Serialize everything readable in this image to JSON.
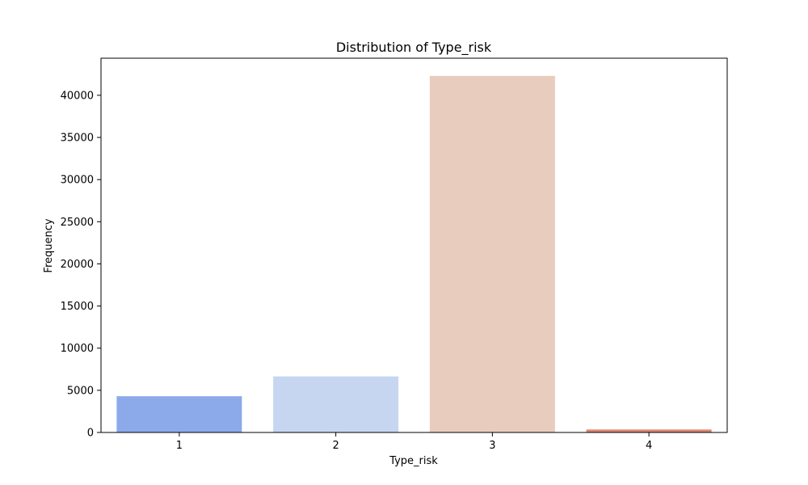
{
  "chart_data": {
    "type": "bar",
    "title": "Distribution of Type_risk",
    "xlabel": "Type_risk",
    "ylabel": "Frequency",
    "categories": [
      "1",
      "2",
      "3",
      "4"
    ],
    "values": [
      4300,
      6650,
      42300,
      350
    ],
    "colors": [
      "#8caaea",
      "#c6d6f1",
      "#e8ccbe",
      "#dc8672"
    ],
    "yticks": [
      0,
      5000,
      10000,
      15000,
      20000,
      25000,
      30000,
      35000,
      40000
    ],
    "ytick_labels": [
      "0",
      "5000",
      "10000",
      "15000",
      "20000",
      "25000",
      "30000",
      "35000",
      "40000"
    ],
    "ylim": [
      0,
      44400
    ],
    "grid": false,
    "legend": "none"
  }
}
